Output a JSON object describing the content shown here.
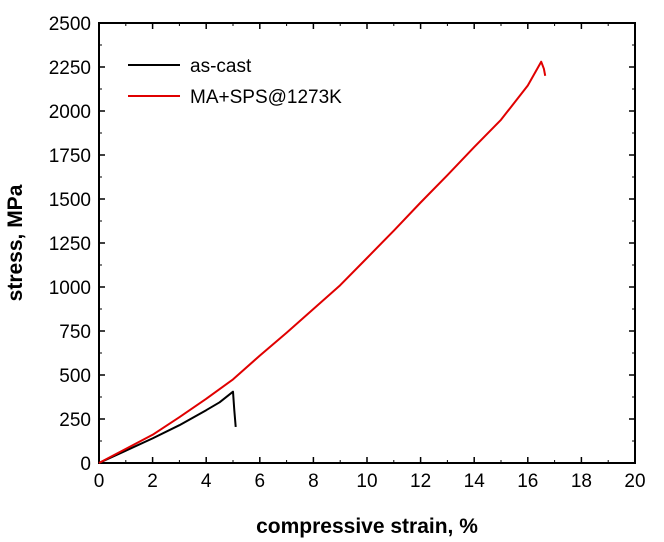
{
  "chart_data": {
    "type": "line",
    "title": "",
    "xlabel": "compressive strain, %",
    "ylabel": "stress, MPa",
    "xlim": [
      0,
      20
    ],
    "ylim": [
      0,
      2500
    ],
    "xticks": [
      "0",
      "2",
      "4",
      "6",
      "8",
      "10",
      "12",
      "14",
      "16",
      "18",
      "20"
    ],
    "yticks": [
      "0",
      "250",
      "500",
      "750",
      "1000",
      "1250",
      "1500",
      "1750",
      "2000",
      "2250",
      "2500"
    ],
    "grid": false,
    "legend_position": "top-left",
    "series": [
      {
        "name": "as-cast",
        "color": "#000000",
        "points": [
          [
            0,
            0
          ],
          [
            1,
            70
          ],
          [
            2,
            140
          ],
          [
            3,
            215
          ],
          [
            4,
            300
          ],
          [
            4.5,
            345
          ],
          [
            5.0,
            405
          ],
          [
            5.05,
            300
          ],
          [
            5.1,
            205
          ]
        ]
      },
      {
        "name": "MA+SPS@1273K",
        "color": "#e00000",
        "points": [
          [
            0,
            0
          ],
          [
            1,
            80
          ],
          [
            2,
            160
          ],
          [
            3,
            260
          ],
          [
            4,
            365
          ],
          [
            5,
            475
          ],
          [
            6,
            610
          ],
          [
            7,
            740
          ],
          [
            8,
            875
          ],
          [
            9,
            1010
          ],
          [
            10,
            1165
          ],
          [
            11,
            1320
          ],
          [
            12,
            1480
          ],
          [
            13,
            1635
          ],
          [
            14,
            1795
          ],
          [
            15,
            1950
          ],
          [
            16,
            2145
          ],
          [
            16.5,
            2280
          ],
          [
            16.6,
            2240
          ],
          [
            16.65,
            2200
          ]
        ]
      }
    ]
  }
}
